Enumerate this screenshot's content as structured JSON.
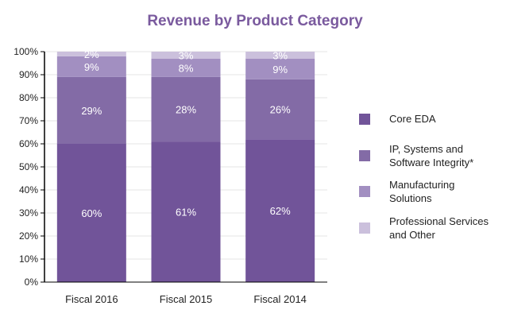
{
  "chart_data": {
    "type": "bar",
    "stacked": true,
    "title": "Revenue by Product Category",
    "categories": [
      "Fiscal 2016",
      "Fiscal 2015",
      "Fiscal 2014"
    ],
    "series": [
      {
        "name": "Core EDA",
        "values": [
          60,
          61,
          62
        ],
        "labels": [
          "60%",
          "61%",
          "62%"
        ],
        "color": "#715499"
      },
      {
        "name": "IP, Systems and Software Integrity*",
        "values": [
          29,
          28,
          26
        ],
        "labels": [
          "29%",
          "28%",
          "26%"
        ],
        "color": "#836ba6"
      },
      {
        "name": "Manufacturing Solutions",
        "values": [
          9,
          8,
          9
        ],
        "labels": [
          "9%",
          "8%",
          "9%"
        ],
        "color": "#a28fc1"
      },
      {
        "name": "Professional Services and Other",
        "values": [
          2,
          3,
          3
        ],
        "labels": [
          "2%",
          "3%",
          "3%"
        ],
        "color": "#cbc0dc"
      }
    ],
    "ylim": [
      0,
      100
    ],
    "yticks": [
      "0%",
      "10%",
      "20%",
      "30%",
      "40%",
      "50%",
      "60%",
      "70%",
      "80%",
      "90%",
      "100%"
    ],
    "grid": true,
    "legend": "right",
    "title_color": "#7a5a9e"
  }
}
